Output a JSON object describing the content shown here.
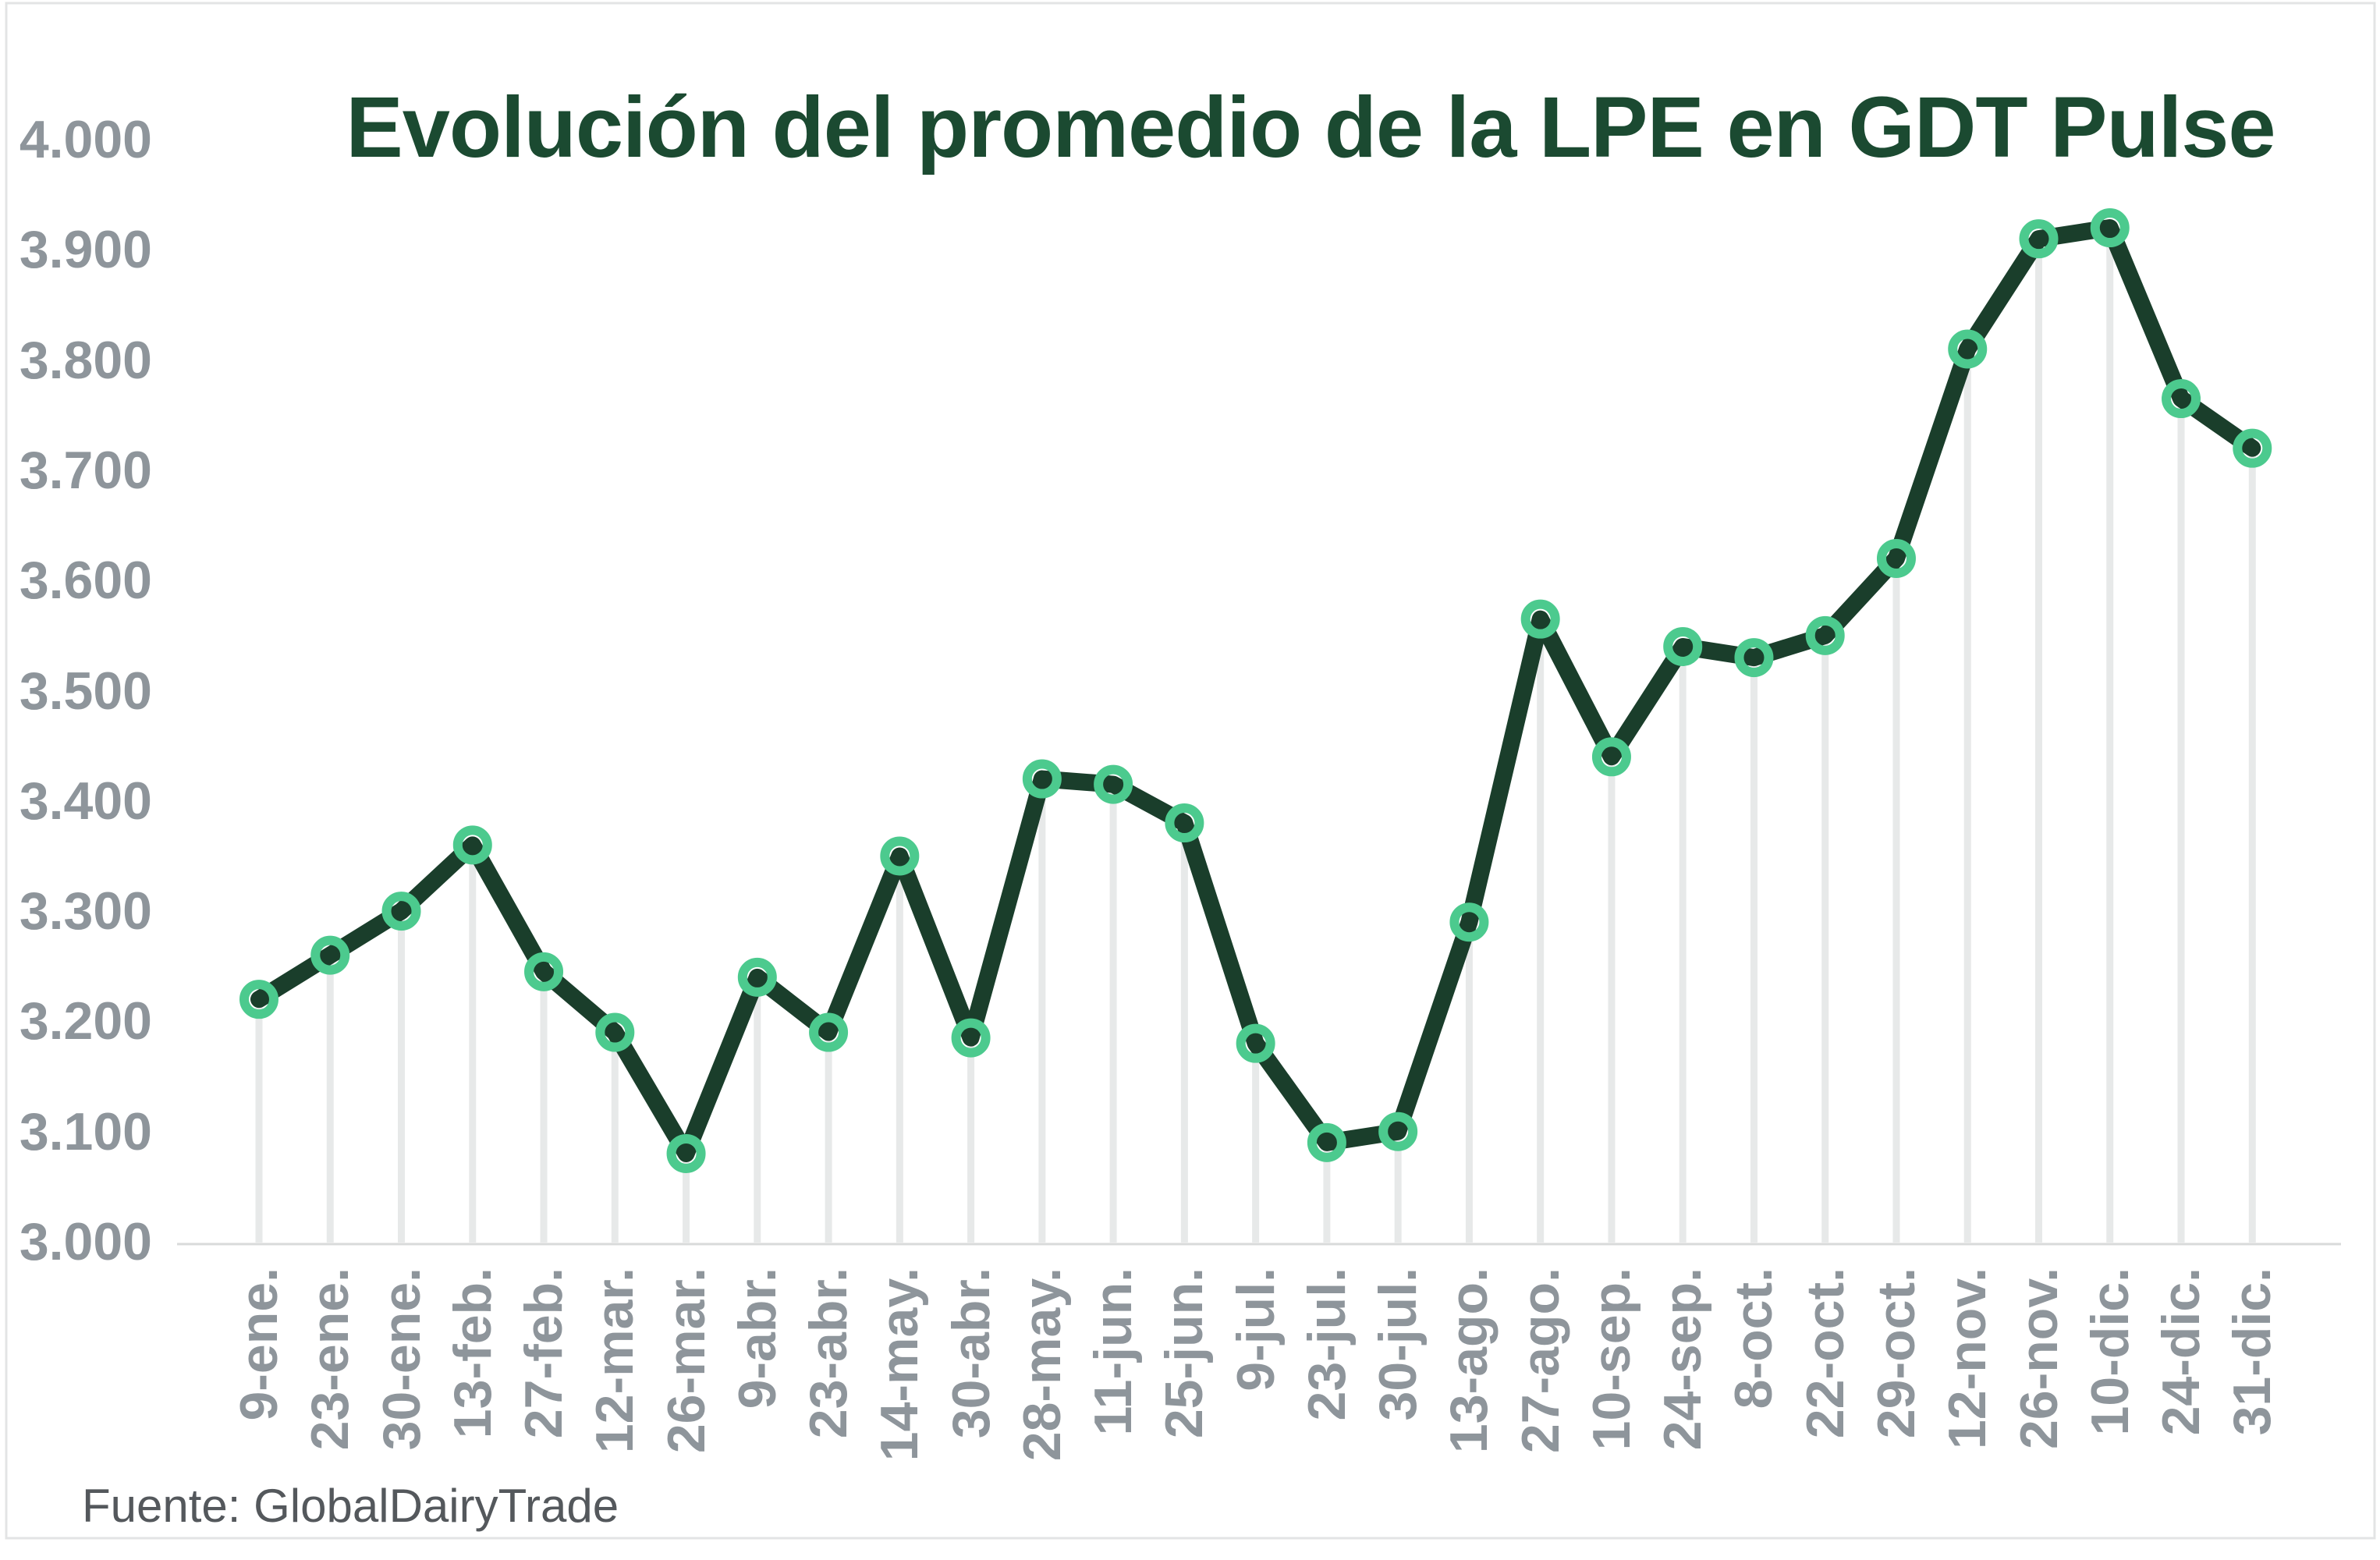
{
  "colors": {
    "background": "#ffffff",
    "line": "#1a3e2b",
    "marker_ring": "#4cca8e",
    "title_text": "#1b4a31",
    "axis_label_text": "#8e959b",
    "source_text": "#54585c",
    "dropline": "#e7e9e9",
    "axis_line": "#d8dada",
    "border": "#e3e4e5"
  },
  "chart_data": {
    "type": "line",
    "title": "Evolución del promedio de la LPE en GDT Pulse",
    "source": "Fuente: GlobalDairyTrade",
    "xlabel": "",
    "ylabel": "",
    "legend": "none",
    "grid": "vertical-droplines",
    "x_labels_rotated": true,
    "ylim": [
      3000,
      4000
    ],
    "y_tick_step": 100,
    "y_ticks": [
      {
        "label": "4.000",
        "value": 4000
      },
      {
        "label": "3.900",
        "value": 3900
      },
      {
        "label": "3.800",
        "value": 3800
      },
      {
        "label": "3.700",
        "value": 3700
      },
      {
        "label": "3.600",
        "value": 3600
      },
      {
        "label": "3.500",
        "value": 3500
      },
      {
        "label": "3.400",
        "value": 3400
      },
      {
        "label": "3.300",
        "value": 3300
      },
      {
        "label": "3.200",
        "value": 3200
      },
      {
        "label": "3.100",
        "value": 3100
      },
      {
        "label": "3.000",
        "value": 3000
      }
    ],
    "categories": [
      "9-ene.",
      "23-ene.",
      "30-ene.",
      "13-feb.",
      "27-feb.",
      "12-mar.",
      "26-mar.",
      "9-abr.",
      "23-abr.",
      "14-may.",
      "30-abr.",
      "28-may.",
      "11-jun.",
      "25-jun.",
      "9-jul.",
      "23-jul.",
      "30-jul.",
      "13-ago.",
      "27-ago.",
      "10-sep.",
      "24-sep.",
      "8-oct.",
      "22-oct.",
      "29-oct.",
      "12-nov.",
      "26-nov.",
      "10-dic.",
      "24-dic.",
      "31-dic."
    ],
    "values": [
      3220,
      3260,
      3300,
      3360,
      3245,
      3190,
      3080,
      3240,
      3190,
      3350,
      3185,
      3420,
      3415,
      3380,
      3180,
      3090,
      3100,
      3290,
      3565,
      3440,
      3540,
      3530,
      3550,
      3620,
      3810,
      3910,
      3920,
      3765,
      3720
    ]
  }
}
